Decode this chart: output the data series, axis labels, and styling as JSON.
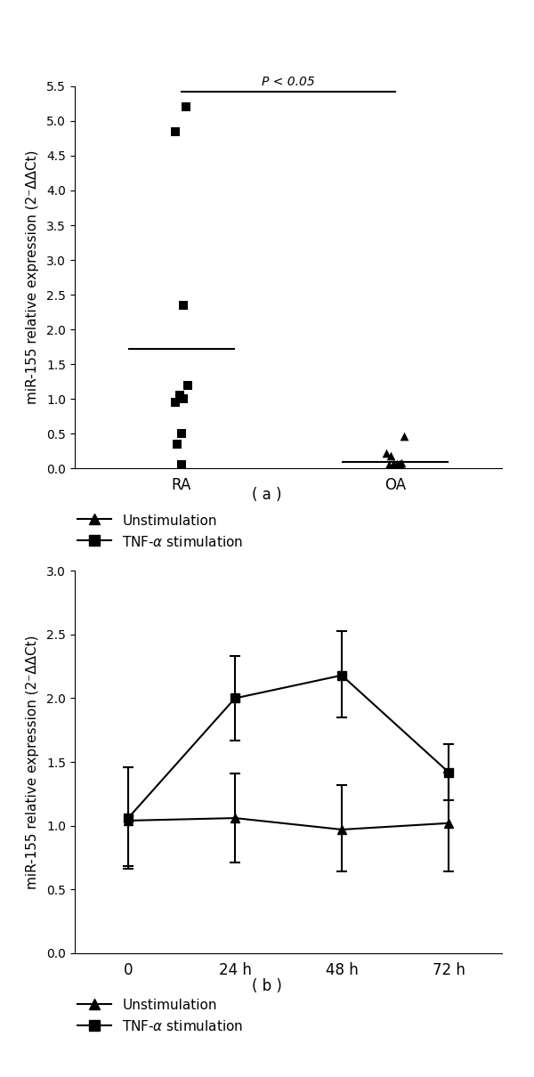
{
  "panel_a": {
    "ylabel": "miR-155 relative expression (2⁻ΔΔCt)",
    "ylim": [
      0,
      5.5
    ],
    "yticks": [
      0,
      0.5,
      1.0,
      1.5,
      2.0,
      2.5,
      3.0,
      3.5,
      4.0,
      4.5,
      5.0,
      5.5
    ],
    "xticks_labels": [
      "RA",
      "OA"
    ],
    "xticks_pos": [
      1,
      2
    ],
    "pvalue_text": "P < 0.05",
    "mean_line_RA": 1.72,
    "mean_line_OA": 0.1,
    "RA_TNF_x": [
      1.02,
      0.97,
      1.01,
      1.03,
      0.99,
      1.01,
      0.97,
      1.0,
      0.98,
      1.0
    ],
    "RA_TNF_y": [
      5.2,
      4.85,
      2.35,
      1.2,
      1.05,
      1.0,
      0.95,
      0.5,
      0.35,
      0.05
    ],
    "OA_unstim_x": [
      1.96,
      2.02,
      1.97,
      2.04,
      1.99,
      2.01,
      2.03,
      1.98
    ],
    "OA_unstim_y": [
      0.22,
      0.07,
      0.06,
      0.47,
      0.07,
      0.07,
      0.08,
      0.18
    ],
    "caption": "( a )",
    "bracket_y": 5.42,
    "bracket_x1": 1.0,
    "bracket_x2": 2.0
  },
  "panel_b": {
    "ylabel": "miR-155 relative expression (2⁻ΔΔCt)",
    "ylim": [
      0,
      3.0
    ],
    "yticks": [
      0,
      0.5,
      1.0,
      1.5,
      2.0,
      2.5,
      3.0
    ],
    "xticks_labels": [
      "0",
      "24 h",
      "48 h",
      "72 h"
    ],
    "xticks_pos": [
      0,
      1,
      2,
      3
    ],
    "TNF_mean": [
      1.06,
      2.0,
      2.18,
      1.42
    ],
    "TNF_err_up": [
      0.4,
      0.33,
      0.35,
      0.22
    ],
    "TNF_err_dn": [
      0.38,
      0.33,
      0.33,
      0.22
    ],
    "unstim_mean": [
      1.04,
      1.06,
      0.97,
      1.02
    ],
    "unstim_err_up": [
      0.42,
      0.35,
      0.35,
      0.4
    ],
    "unstim_err_dn": [
      0.38,
      0.35,
      0.33,
      0.38
    ],
    "caption": "( b )"
  },
  "color": "#000000",
  "markersize": 7,
  "linewidth": 1.5
}
